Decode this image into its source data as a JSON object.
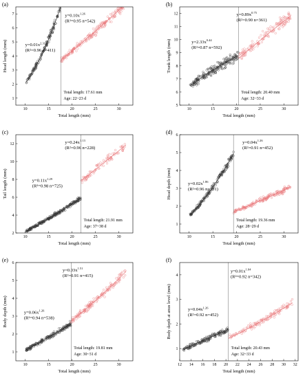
{
  "chart_data": [
    {
      "panel": "(a)",
      "type": "scatter",
      "xlabel": "Total length (mm)",
      "ylabel": "Head length (mm)",
      "xlim": [
        8,
        33
      ],
      "ylim": [
        0.5,
        7.5
      ],
      "xticks": [
        10,
        15,
        20,
        25,
        30
      ],
      "yticks": [
        1,
        2,
        3,
        4,
        5,
        6,
        7
      ],
      "inflection_x": 17.61,
      "note_length": "Total length: 17.61 mm",
      "note_age": "Age: 22~23 d",
      "series": [
        {
          "color": "black",
          "a": 0.01,
          "b": 2.31,
          "x_range": [
            10.2,
            17.61
          ],
          "n": 411,
          "eq_main": "y=0.01x",
          "eq_exp": "2.31",
          "eq_stats": "(R²=0.96 n=411)"
        },
        {
          "color": "red",
          "a": 0.1,
          "b": 1.26,
          "x_range": [
            17.61,
            31.5
          ],
          "n": 542,
          "eq_main": "y=0.10x",
          "eq_exp": "1.26",
          "eq_stats": "(R²=0.95 n=542)"
        }
      ]
    },
    {
      "panel": "(b)",
      "type": "scatter",
      "xlabel": "Total length (mm)",
      "ylabel": "Trunk length (mm)",
      "xlim": [
        8,
        33
      ],
      "ylim": [
        5,
        12.5
      ],
      "xticks": [
        10,
        15,
        20,
        25,
        30
      ],
      "yticks": [
        5,
        6,
        7,
        8,
        9,
        10,
        11,
        12
      ],
      "inflection_x": 20.4,
      "note_length": "Total length: 20.40 mm",
      "note_age": "Age: 32~33 d",
      "series": [
        {
          "color": "black",
          "a": 2.33,
          "b": 0.44,
          "x_range": [
            10.2,
            20.4
          ],
          "n": 592,
          "eq_main": "y=2.33x",
          "eq_exp": "0.44",
          "eq_stats": "(R²=0.87 n=592)"
        },
        {
          "color": "red",
          "a": 0.89,
          "b": 0.75,
          "x_range": [
            20.4,
            31.5
          ],
          "n": 361,
          "eq_main": "y=0.89x",
          "eq_exp": "0.75",
          "eq_stats": "(R²=0.90 n=361)"
        }
      ]
    },
    {
      "panel": "(c)",
      "type": "scatter",
      "xlabel": "Total length (mm)",
      "ylabel": "Tail length (mm)",
      "xlim": [
        8,
        33
      ],
      "ylim": [
        2,
        13
      ],
      "xticks": [
        10,
        15,
        20,
        25,
        30
      ],
      "yticks": [
        2,
        4,
        6,
        8,
        10,
        12
      ],
      "inflection_x": 21.91,
      "note_length": "Total length: 21.91 mm",
      "note_age": "Age: 37~38 d",
      "series": [
        {
          "color": "black",
          "a": 0.11,
          "b": 1.29,
          "x_range": [
            10.2,
            21.91
          ],
          "n": 725,
          "eq_main": "y=0.11x",
          "eq_exp": "1.29",
          "eq_stats": "(R²=0.98 n=725)"
        },
        {
          "color": "red",
          "a": 0.24,
          "b": 1.13,
          "x_range": [
            21.91,
            31.5
          ],
          "n": 228,
          "eq_main": "y=0.24x",
          "eq_exp": "1.13",
          "eq_stats": "(R²=0.96 n=228)"
        }
      ]
    },
    {
      "panel": "(d)",
      "type": "scatter",
      "xlabel": "Total length (mm)",
      "ylabel": "Head depth (mm)",
      "xlim": [
        8,
        33
      ],
      "ylim": [
        0.5,
        6
      ],
      "xticks": [
        10,
        15,
        20,
        25,
        30
      ],
      "yticks": [
        1,
        2,
        3,
        4,
        5,
        6
      ],
      "inflection_x": 19.36,
      "note_length": "Total length: 19.36 mm",
      "note_age": "Age: 28~29 d",
      "series": [
        {
          "color": "black",
          "a": 0.02,
          "b": 1.86,
          "x_range": [
            10.2,
            19.36
          ],
          "n": 501,
          "eq_main": "y=0.02x",
          "eq_exp": "1.86",
          "eq_stats": "(R²=0.96 n=501)"
        },
        {
          "color": "red",
          "a": 0.04,
          "b": 1.26,
          "x_range": [
            19.36,
            31.5
          ],
          "n": 452,
          "eq_main": "y=0.04x",
          "eq_exp": "1.26",
          "eq_stats": "(R²=0.91 n=452)"
        }
      ]
    },
    {
      "panel": "(e)",
      "type": "scatter",
      "xlabel": "Total length (mm)",
      "ylabel": "Body depth (mm)",
      "xlim": [
        8,
        33
      ],
      "ylim": [
        0.5,
        6
      ],
      "xticks": [
        10,
        15,
        20,
        25,
        30
      ],
      "yticks": [
        1,
        2,
        3,
        4,
        5,
        6
      ],
      "inflection_x": 19.81,
      "note_length": "Total length: 19.81 mm",
      "note_age": "Age: 30~31 d",
      "series": [
        {
          "color": "black",
          "a": 0.06,
          "b": 1.26,
          "x_range": [
            10.2,
            19.81
          ],
          "n": 538,
          "eq_main": "y=0.06x",
          "eq_exp": "1.26",
          "eq_stats": "(R²=0.94 n=538)"
        },
        {
          "color": "red",
          "a": 0.03,
          "b": 1.51,
          "x_range": [
            19.81,
            31.5
          ],
          "n": 415,
          "eq_main": "y=0.03x",
          "eq_exp": "1.51",
          "eq_stats": "(R²=0.91 n=415)"
        }
      ]
    },
    {
      "panel": "(f)",
      "type": "scatter",
      "xlabel": "Total length (mm)",
      "ylabel": "Body depth at anus level (mm)",
      "xlim": [
        12,
        32.5
      ],
      "ylim": [
        0.5,
        4.5
      ],
      "xticks": [
        12,
        14,
        16,
        18,
        20,
        22,
        24,
        26,
        28,
        30,
        32
      ],
      "yticks": [
        1,
        2,
        3,
        4
      ],
      "inflection_x": 20.43,
      "note_length": "Total length: 20.43 mm",
      "note_age": "Age: 32~33 d",
      "series": [
        {
          "color": "black",
          "a": 0.04,
          "b": 1.26,
          "x_range": [
            12.6,
            20.43
          ],
          "n": 452,
          "eq_main": "y=0.04x",
          "eq_exp": "1.26",
          "eq_stats": "(R²=0.92 n=452)"
        },
        {
          "color": "red",
          "a": 0.01,
          "b": 1.64,
          "x_range": [
            20.43,
            31.5
          ],
          "n": 342,
          "eq_main": "y=0.01x",
          "eq_exp": "1.64",
          "eq_stats": "(R²=0.92 n=342)"
        }
      ]
    }
  ],
  "colors": {
    "black_series": "#333333",
    "red_series": "#e8797c"
  }
}
